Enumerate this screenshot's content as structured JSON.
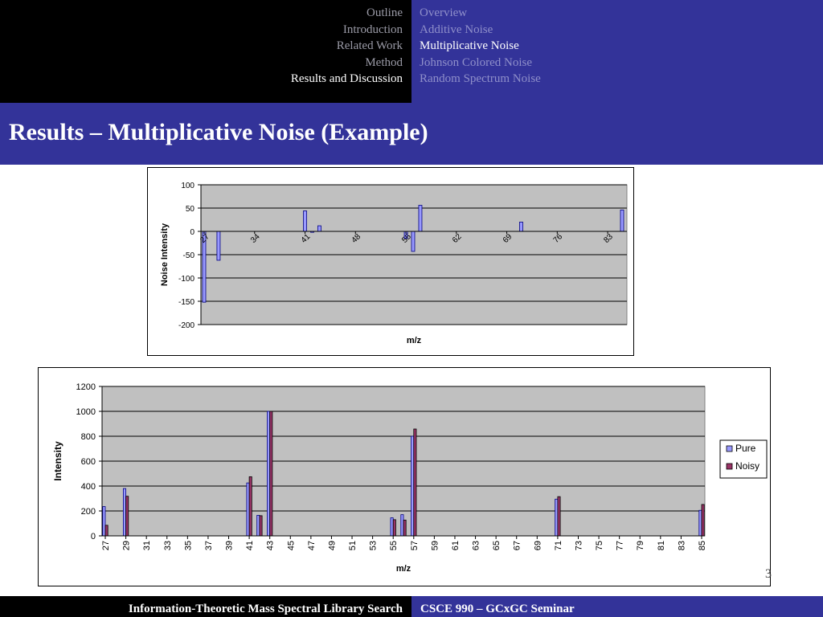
{
  "nav": {
    "sections": [
      "Outline",
      "Introduction",
      "Related Work",
      "Method",
      "Results and Discussion"
    ],
    "active_section": 4,
    "subsections": [
      "Overview",
      "Additive Noise",
      "Multiplicative Noise",
      "Johnson Colored Noise",
      "Random Spectrum Noise"
    ],
    "active_subsection": 2
  },
  "slide": {
    "title": "Results – Multiplicative Noise (Example)",
    "page_number": "3"
  },
  "footer": {
    "left": "Information-Theoretic Mass Spectral Library Search",
    "right": "CSCE 990 – GCxGC Seminar"
  },
  "colors": {
    "pure": "#9999ff",
    "noisy": "#993366",
    "plot_bg": "#c0c0c0"
  },
  "chart_data": [
    {
      "type": "bar",
      "title": "",
      "xlabel": "m/z",
      "ylabel": "Noise Intensity",
      "ylim": [
        -200,
        100
      ],
      "yticks": [
        100,
        50,
        0,
        -50,
        -100,
        -150,
        -200
      ],
      "xtick_labels": [
        "27",
        "34",
        "41",
        "48",
        "55",
        "62",
        "69",
        "76",
        "83"
      ],
      "x_range": [
        27,
        85
      ],
      "grid": true,
      "legend": "none",
      "series": [
        {
          "x": [
            27,
            29,
            41,
            42,
            43,
            55,
            56,
            57,
            71,
            85
          ],
          "values": [
            -152,
            -62,
            44,
            -2,
            12,
            -15,
            -43,
            56,
            20,
            46
          ]
        }
      ]
    },
    {
      "type": "bar",
      "title": "",
      "xlabel": "m/z",
      "ylabel": "Intensity",
      "ylim": [
        0,
        1200
      ],
      "yticks": [
        1200,
        1000,
        800,
        600,
        400,
        200,
        0
      ],
      "categories": [
        "27",
        "29",
        "31",
        "33",
        "35",
        "37",
        "39",
        "41",
        "43",
        "45",
        "47",
        "49",
        "51",
        "53",
        "55",
        "57",
        "59",
        "61",
        "63",
        "65",
        "67",
        "69",
        "71",
        "73",
        "75",
        "77",
        "79",
        "81",
        "83",
        "85"
      ],
      "grid": true,
      "legend": "right",
      "series": [
        {
          "name": "Pure",
          "x": [
            27,
            29,
            41,
            42,
            43,
            55,
            56,
            57,
            71,
            85
          ],
          "values": [
            235,
            380,
            425,
            165,
            1000,
            145,
            170,
            800,
            295,
            205
          ]
        },
        {
          "name": "Noisy",
          "x": [
            27,
            29,
            41,
            42,
            43,
            55,
            56,
            57,
            71,
            85
          ],
          "values": [
            85,
            318,
            475,
            162,
            1000,
            130,
            127,
            858,
            315,
            252
          ]
        }
      ]
    }
  ]
}
